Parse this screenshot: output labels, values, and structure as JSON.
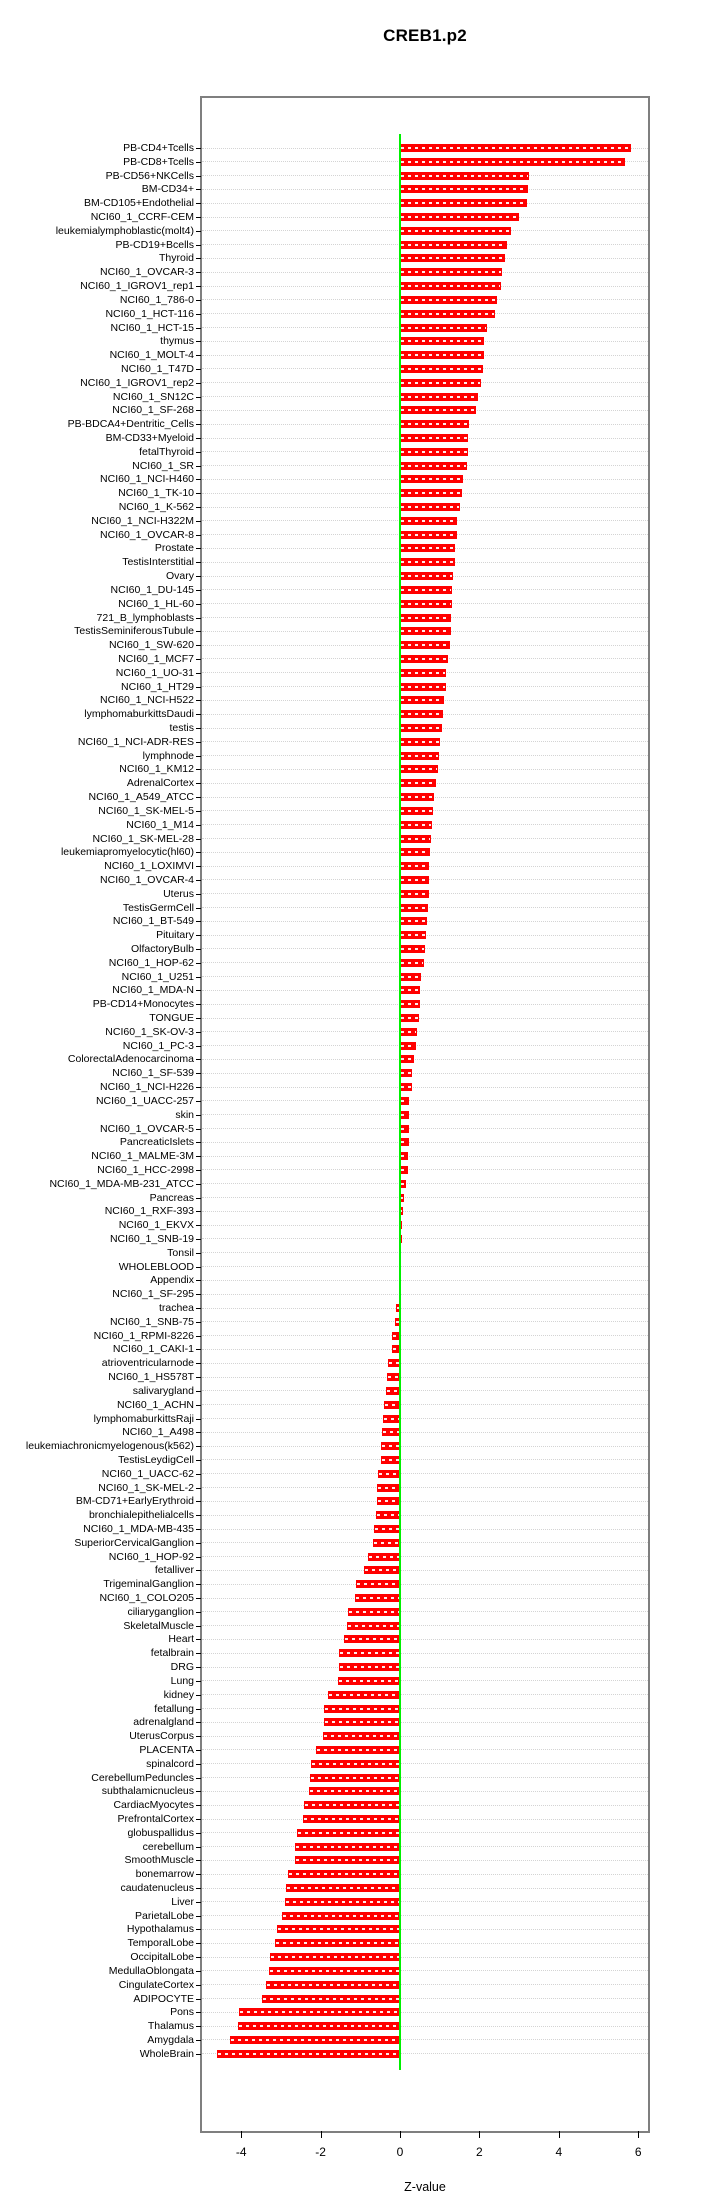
{
  "chart_data": {
    "type": "bar",
    "orientation": "horizontal",
    "title": "CREB1.p2",
    "xlabel": "Z-value",
    "xlim": [
      -5.0,
      6.3
    ],
    "xticks": [
      -4,
      -2,
      0,
      2,
      4,
      6
    ],
    "xtick_labels": [
      "-4",
      "-2",
      "0",
      "2",
      "4",
      "6"
    ],
    "grid": true,
    "legend": "none",
    "bar_color": "#ff0000",
    "zero_line_color": "#00f000",
    "grid_color": "#d4d4d4",
    "categories": [
      "PB-CD4+Tcells",
      "PB-CD8+Tcells",
      "PB-CD56+NKCells",
      "BM-CD34+",
      "BM-CD105+Endothelial",
      "NCI60_1_CCRF-CEM",
      "leukemialymphoblastic(molt4)",
      "PB-CD19+Bcells",
      "Thyroid",
      "NCI60_1_OVCAR-3",
      "NCI60_1_IGROV1_rep1",
      "NCI60_1_786-0",
      "NCI60_1_HCT-116",
      "NCI60_1_HCT-15",
      "thymus",
      "NCI60_1_MOLT-4",
      "NCI60_1_T47D",
      "NCI60_1_IGROV1_rep2",
      "NCI60_1_SN12C",
      "NCI60_1_SF-268",
      "PB-BDCA4+Dentritic_Cells",
      "BM-CD33+Myeloid",
      "fetalThyroid",
      "NCI60_1_SR",
      "NCI60_1_NCI-H460",
      "NCI60_1_TK-10",
      "NCI60_1_K-562",
      "NCI60_1_NCI-H322M",
      "NCI60_1_OVCAR-8",
      "Prostate",
      "TestisInterstitial",
      "Ovary",
      "NCI60_1_DU-145",
      "NCI60_1_HL-60",
      "721_B_lymphoblasts",
      "TestisSeminiferousTubule",
      "NCI60_1_SW-620",
      "NCI60_1_MCF7",
      "NCI60_1_UO-31",
      "NCI60_1_HT29",
      "NCI60_1_NCI-H522",
      "lymphomaburkittsDaudi",
      "testis",
      "NCI60_1_NCI-ADR-RES",
      "lymphnode",
      "NCI60_1_KM12",
      "AdrenalCortex",
      "NCI60_1_A549_ATCC",
      "NCI60_1_SK-MEL-5",
      "NCI60_1_M14",
      "NCI60_1_SK-MEL-28",
      "leukemiapromyelocytic(hl60)",
      "NCI60_1_LOXIMVI",
      "NCI60_1_OVCAR-4",
      "Uterus",
      "TestisGermCell",
      "NCI60_1_BT-549",
      "Pituitary",
      "OlfactoryBulb",
      "NCI60_1_HOP-62",
      "NCI60_1_U251",
      "NCI60_1_MDA-N",
      "PB-CD14+Monocytes",
      "TONGUE",
      "NCI60_1_SK-OV-3",
      "NCI60_1_PC-3",
      "ColorectalAdenocarcinoma",
      "NCI60_1_SF-539",
      "NCI60_1_NCI-H226",
      "NCI60_1_UACC-257",
      "skin",
      "NCI60_1_OVCAR-5",
      "PancreaticIslets",
      "NCI60_1_MALME-3M",
      "NCI60_1_HCC-2998",
      "NCI60_1_MDA-MB-231_ATCC",
      "Pancreas",
      "NCI60_1_RXF-393",
      "NCI60_1_EKVX",
      "NCI60_1_SNB-19",
      "Tonsil",
      "WHOLEBLOOD",
      "Appendix",
      "NCI60_1_SF-295",
      "trachea",
      "NCI60_1_SNB-75",
      "NCI60_1_RPMI-8226",
      "NCI60_1_CAKI-1",
      "atrioventricularnode",
      "NCI60_1_HS578T",
      "salivarygland",
      "NCI60_1_ACHN",
      "lymphomaburkittsRaji",
      "NCI60_1_A498",
      "leukemiachronicmyelogenous(k562)",
      "TestisLeydigCell",
      "NCI60_1_UACC-62",
      "NCI60_1_SK-MEL-2",
      "BM-CD71+EarlyErythroid",
      "bronchialepithelialcells",
      "NCI60_1_MDA-MB-435",
      "SuperiorCervicalGanglion",
      "NCI60_1_HOP-92",
      "fetalliver",
      "TrigeminalGanglion",
      "NCI60_1_COLO205",
      "ciliaryganglion",
      "SkeletalMuscle",
      "Heart",
      "fetalbrain",
      "DRG",
      "Lung",
      "kidney",
      "fetallung",
      "adrenalgland",
      "UterusCorpus",
      "PLACENTA",
      "spinalcord",
      "CerebellumPeduncles",
      "subthalamicnucleus",
      "CardiacMyocytes",
      "PrefrontalCortex",
      "globuspallidus",
      "cerebellum",
      "SmoothMuscle",
      "bonemarrow",
      "caudatenucleus",
      "Liver",
      "ParietalLobe",
      "Hypothalamus",
      "TemporalLobe",
      "OccipitalLobe",
      "MedullaOblongata",
      "CingulateCortex",
      "ADIPOCYTE",
      "Pons",
      "Thalamus",
      "Amygdala",
      "WholeBrain"
    ],
    "values": [
      5.83,
      5.67,
      3.25,
      3.22,
      3.2,
      3.01,
      2.8,
      2.69,
      2.65,
      2.58,
      2.54,
      2.44,
      2.39,
      2.19,
      2.12,
      2.12,
      2.08,
      2.03,
      1.97,
      1.91,
      1.74,
      1.72,
      1.71,
      1.7,
      1.59,
      1.55,
      1.52,
      1.44,
      1.43,
      1.38,
      1.38,
      1.33,
      1.3,
      1.3,
      1.28,
      1.28,
      1.27,
      1.21,
      1.17,
      1.15,
      1.12,
      1.09,
      1.06,
      1.01,
      0.98,
      0.96,
      0.9,
      0.86,
      0.82,
      0.8,
      0.77,
      0.76,
      0.74,
      0.74,
      0.72,
      0.7,
      0.69,
      0.66,
      0.62,
      0.6,
      0.54,
      0.51,
      0.51,
      0.49,
      0.43,
      0.41,
      0.36,
      0.29,
      0.29,
      0.23,
      0.22,
      0.22,
      0.22,
      0.21,
      0.19,
      0.15,
      0.11,
      0.08,
      0.06,
      0.05,
      0.03,
      0.02,
      0.02,
      -0.02,
      -0.1,
      -0.13,
      -0.19,
      -0.21,
      -0.29,
      -0.32,
      -0.36,
      -0.41,
      -0.42,
      -0.45,
      -0.47,
      -0.48,
      -0.55,
      -0.57,
      -0.58,
      -0.61,
      -0.65,
      -0.67,
      -0.81,
      -0.91,
      -1.11,
      -1.14,
      -1.31,
      -1.34,
      -1.41,
      -1.53,
      -1.54,
      -1.55,
      -1.81,
      -1.91,
      -1.92,
      -1.93,
      -2.12,
      -2.23,
      -2.26,
      -2.3,
      -2.42,
      -2.45,
      -2.59,
      -2.64,
      -2.65,
      -2.81,
      -2.87,
      -2.89,
      -2.98,
      -3.11,
      -3.16,
      -3.27,
      -3.31,
      -3.38,
      -3.48,
      -4.05,
      -4.07,
      -4.28,
      -4.61
    ]
  }
}
